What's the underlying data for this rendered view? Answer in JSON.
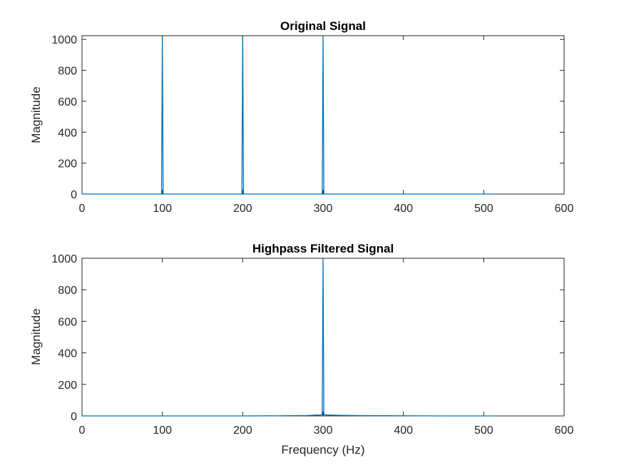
{
  "chart_data": [
    {
      "type": "line",
      "title": "Original Signal",
      "xlabel": "",
      "ylabel": "Magnitude",
      "xlim": [
        0,
        600
      ],
      "ylim": [
        0,
        1024
      ],
      "xticks": [
        0,
        100,
        200,
        300,
        400,
        500,
        600
      ],
      "yticks": [
        0,
        200,
        400,
        600,
        800,
        1000
      ],
      "xtick_labels": [
        "0",
        "100",
        "200",
        "300",
        "400",
        "500",
        "600"
      ],
      "ytick_labels": [
        "0",
        "200",
        "400",
        "600",
        "800",
        "1000"
      ],
      "grid": false,
      "color": "#0072BD",
      "series": [
        {
          "x": [
            0,
            99,
            100,
            101,
            199,
            200,
            201,
            299,
            300,
            301,
            511.5
          ],
          "y": [
            0,
            0,
            1024,
            0,
            0,
            1024,
            0,
            0,
            1024,
            0,
            0
          ]
        }
      ]
    },
    {
      "type": "line",
      "title": "Highpass Filtered Signal",
      "xlabel": "Frequency (Hz)",
      "ylabel": "Magnitude",
      "xlim": [
        0,
        600
      ],
      "ylim": [
        0,
        1000
      ],
      "xticks": [
        0,
        100,
        200,
        300,
        400,
        500,
        600
      ],
      "yticks": [
        0,
        200,
        400,
        600,
        800,
        1000
      ],
      "xtick_labels": [
        "0",
        "100",
        "200",
        "300",
        "400",
        "500",
        "600"
      ],
      "ytick_labels": [
        "0",
        "200",
        "400",
        "600",
        "800",
        "1000"
      ],
      "grid": false,
      "color": "#0072BD",
      "series": [
        {
          "x": [
            0,
            100,
            200,
            250,
            280,
            295,
            299,
            300,
            301,
            305,
            320,
            350,
            400,
            450,
            511.5
          ],
          "y": [
            0,
            0,
            0,
            1,
            3,
            6,
            8,
            1000,
            8,
            6,
            4,
            2,
            1,
            0,
            0
          ]
        }
      ]
    }
  ]
}
